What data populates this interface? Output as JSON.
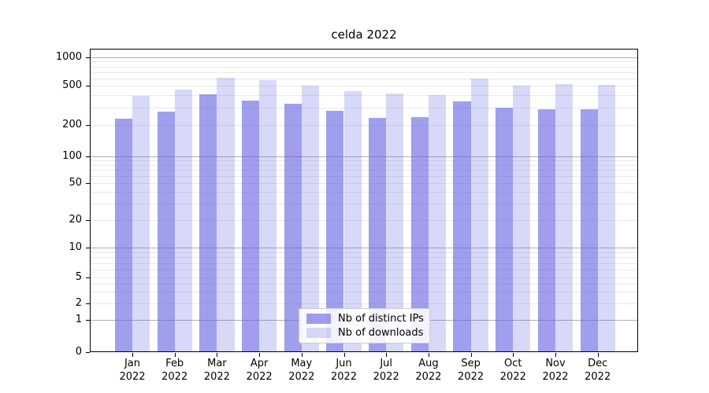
{
  "title": "celda 2022",
  "chart_data": {
    "type": "bar",
    "title": "celda 2022",
    "categories": [
      "Jan 2022",
      "Feb 2022",
      "Mar 2022",
      "Apr 2022",
      "May 2022",
      "Jun 2022",
      "Jul 2022",
      "Aug 2022",
      "Sep 2022",
      "Oct 2022",
      "Nov 2022",
      "Dec 2022"
    ],
    "series": [
      {
        "name": "Nb of distinct IPs",
        "color": "#9f9fed",
        "fill": "rgba(95,95,225,0.60)",
        "values": [
          233,
          272,
          412,
          351,
          329,
          279,
          236,
          240,
          344,
          297,
          288,
          288
        ]
      },
      {
        "name": "Nb of downloads",
        "color": "#d8d8f8",
        "fill": "rgba(95,95,225,0.245)",
        "values": [
          392,
          455,
          610,
          577,
          500,
          436,
          416,
          402,
          597,
          497,
          519,
          508
        ]
      }
    ],
    "xlabel": "",
    "ylabel": "",
    "yscale": "log-with-zero",
    "y_ticks": [
      0,
      1,
      2,
      5,
      10,
      20,
      50,
      100,
      200,
      500,
      1000
    ],
    "ylim": [
      0,
      1268
    ],
    "grid": true,
    "legend_position": "lower center",
    "colors": {
      "major_grid": "#b0b0b0",
      "minor_grid": "#e9e9e9",
      "spine": "#000000",
      "text": "#000000",
      "background": "#ffffff"
    }
  }
}
